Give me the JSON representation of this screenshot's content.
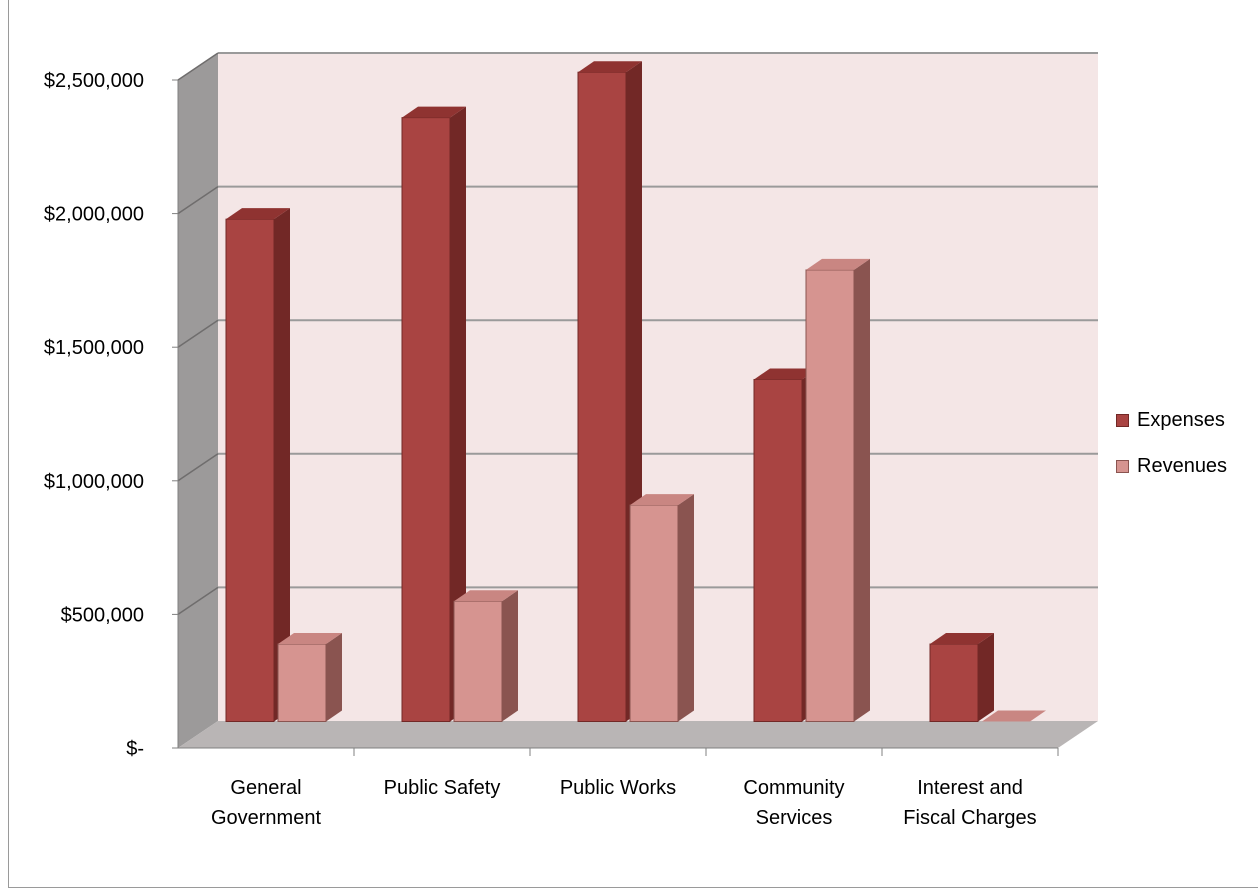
{
  "chart_data": {
    "type": "bar",
    "style": "3d-clustered-column",
    "categories": [
      [
        "General",
        "Government"
      ],
      [
        "Public Safety"
      ],
      [
        "Public Works"
      ],
      [
        "Community",
        "Services"
      ],
      [
        "Interest and",
        "Fiscal Charges"
      ]
    ],
    "series": [
      {
        "name": "Expenses",
        "values": [
          1880000,
          2260000,
          2430000,
          1280000,
          290000
        ],
        "color": "#a94442",
        "top": "#8f3331",
        "side": "#722826"
      },
      {
        "name": "Revenues",
        "values": [
          290000,
          450000,
          810000,
          1690000,
          0
        ],
        "color": "#d69490",
        "top": "#c98682",
        "side": "#8a5450"
      }
    ],
    "ylim": [
      0,
      2500000
    ],
    "yticks": [
      0,
      500000,
      1000000,
      1500000,
      2000000,
      2500000
    ],
    "ytick_labels": [
      "$-",
      "$500,000",
      "$1,000,000",
      "$1,500,000",
      "$2,000,000",
      "$2,500,000"
    ],
    "grid": true,
    "legend": "right",
    "colors": {
      "back_wall": "#f4e6e6",
      "side_wall": "#9c9a9a",
      "floor": "#b9b5b5",
      "gridline": "#9a9a9a"
    }
  }
}
